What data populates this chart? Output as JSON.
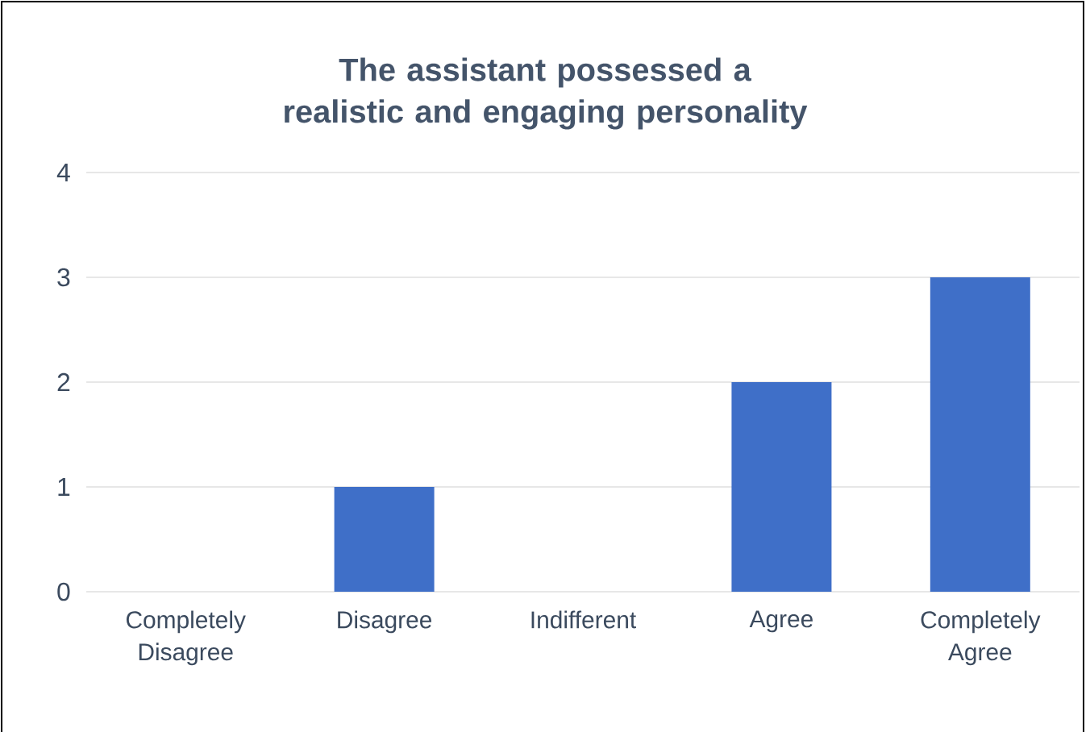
{
  "chart_data": {
    "type": "bar",
    "title": "The assistant possessed a realistic and engaging personality",
    "categories": [
      "Completely Disagree",
      "Disagree",
      "Indifferent",
      "Agree",
      "Completely Agree"
    ],
    "values": [
      0,
      1,
      0,
      2,
      3
    ],
    "color": "#3f6fc8",
    "ylim": [
      0,
      4
    ],
    "yticks": [
      0,
      1,
      2,
      3,
      4
    ],
    "grid": "y"
  }
}
